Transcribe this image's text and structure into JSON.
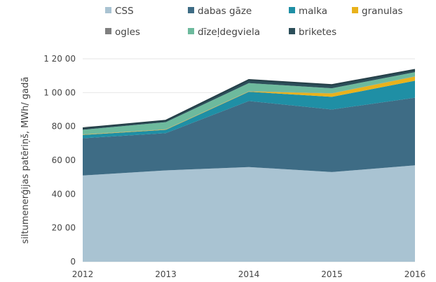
{
  "chart_data": {
    "type": "area",
    "stacked": true,
    "x": [
      "2012",
      "2013",
      "2014",
      "2015",
      "2016"
    ],
    "ylabel": "siltumenerģijas patēriņš, MWh/ gadā",
    "yticks": [
      "0",
      "20 00",
      "40 00",
      "60 00",
      "80 00",
      "1 00 00",
      "1 20 00"
    ],
    "ylim": [
      0,
      12000
    ],
    "legend_position": "top",
    "series": [
      {
        "name": "CSS",
        "color": "#a9c3d2",
        "values": [
          5100,
          5400,
          5600,
          5300,
          5700
        ]
      },
      {
        "name": "dabas gāze",
        "color": "#3e6c85",
        "values": [
          2200,
          2200,
          3900,
          3700,
          4000
        ]
      },
      {
        "name": "malka",
        "color": "#1f8fa5",
        "values": [
          200,
          200,
          550,
          750,
          1000
        ]
      },
      {
        "name": "granulas",
        "color": "#e9b21b",
        "values": [
          20,
          20,
          20,
          200,
          250
        ]
      },
      {
        "name": "ogles",
        "color": "#7f7f7f",
        "values": [
          10,
          10,
          10,
          10,
          10
        ]
      },
      {
        "name": "dīzeļdegviela",
        "color": "#6dba9d",
        "values": [
          270,
          420,
          480,
          300,
          250
        ]
      },
      {
        "name": "briketes",
        "color": "#2c4f5a",
        "values": [
          100,
          100,
          200,
          200,
          150
        ]
      }
    ]
  }
}
